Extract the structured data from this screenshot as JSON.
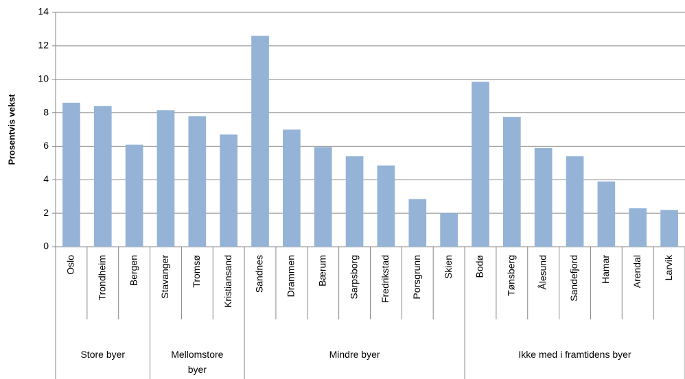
{
  "chart_data": {
    "type": "bar",
    "y_label": "Prosentvis vekst",
    "color": "#95b3d7",
    "ylim": [
      0,
      14
    ],
    "yticks": [
      0,
      2,
      4,
      6,
      8,
      10,
      12,
      14
    ],
    "groups": [
      {
        "label": "Store byer",
        "categories": [
          "Oslo",
          "Trondheim",
          "Bergen"
        ],
        "values": [
          8.6,
          8.4,
          6.1
        ]
      },
      {
        "label": "Mellomstore byer",
        "categories": [
          "Stavanger",
          "Tromsø",
          "Kristiansand"
        ],
        "values": [
          8.15,
          7.8,
          6.7
        ]
      },
      {
        "label": "Mindre byer",
        "categories": [
          "Sandnes",
          "Drammen",
          "Bærum",
          "Sarpsborg",
          "Fredrikstad",
          "Porsgrunn",
          "Skien"
        ],
        "values": [
          12.6,
          7.0,
          5.95,
          5.4,
          4.85,
          2.85,
          2.0
        ]
      },
      {
        "label": "Ikke med i framtidens byer",
        "categories": [
          "Bodø",
          "Tønsberg",
          "Ålesund",
          "Sandefjord",
          "Hamar",
          "Arendal",
          "Larvik"
        ],
        "values": [
          9.85,
          7.75,
          5.9,
          5.4,
          3.9,
          2.3,
          2.2
        ]
      }
    ]
  }
}
